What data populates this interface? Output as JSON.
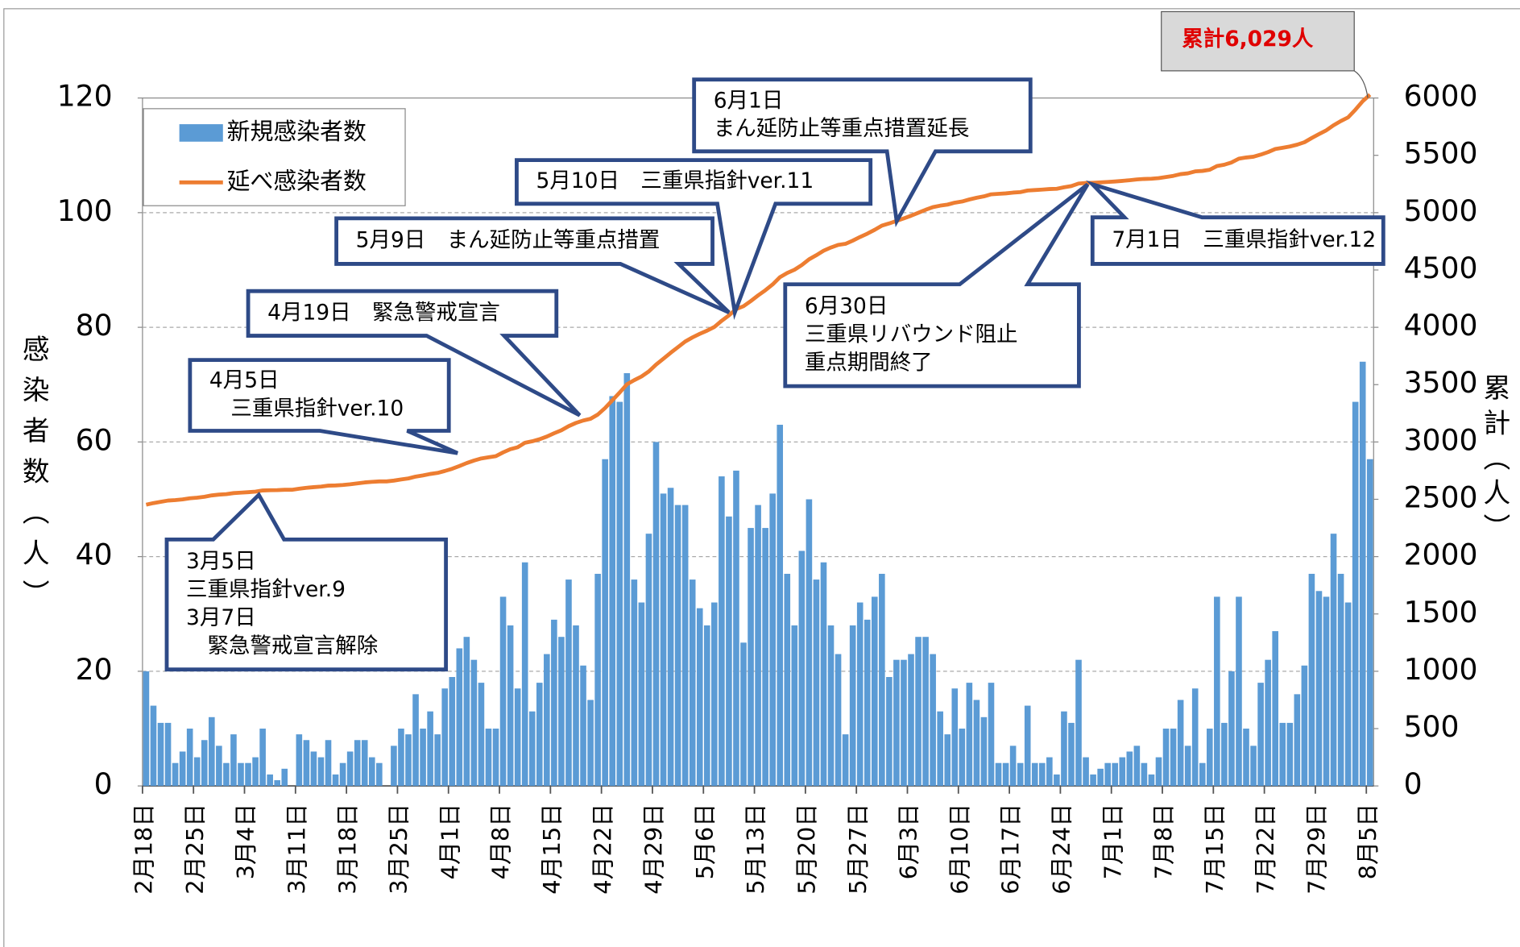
{
  "chart_data": {
    "type": "bar",
    "categories": [
      "2月18日",
      null,
      null,
      null,
      null,
      null,
      null,
      "2月25日",
      null,
      null,
      null,
      null,
      null,
      null,
      "3月4日",
      null,
      null,
      null,
      null,
      null,
      null,
      "3月11日",
      null,
      null,
      null,
      null,
      null,
      null,
      "3月18日",
      null,
      null,
      null,
      null,
      null,
      null,
      "3月25日",
      null,
      null,
      null,
      null,
      null,
      null,
      "4月1日",
      null,
      null,
      null,
      null,
      null,
      null,
      "4月8日",
      null,
      null,
      null,
      null,
      null,
      null,
      "4月15日",
      null,
      null,
      null,
      null,
      null,
      null,
      "4月22日",
      null,
      null,
      null,
      null,
      null,
      null,
      "4月29日",
      null,
      null,
      null,
      null,
      null,
      null,
      "5月6日",
      null,
      null,
      null,
      null,
      null,
      null,
      "5月13日",
      null,
      null,
      null,
      null,
      null,
      null,
      "5月20日",
      null,
      null,
      null,
      null,
      null,
      null,
      "5月27日",
      null,
      null,
      null,
      null,
      null,
      null,
      "6月3日",
      null,
      null,
      null,
      null,
      null,
      null,
      "6月10日",
      null,
      null,
      null,
      null,
      null,
      null,
      "6月17日",
      null,
      null,
      null,
      null,
      null,
      null,
      "6月24日",
      null,
      null,
      null,
      null,
      null,
      null,
      "7月1日",
      null,
      null,
      null,
      null,
      null,
      null,
      "7月8日",
      null,
      null,
      null,
      null,
      null,
      null,
      "7月15日",
      null,
      null,
      null,
      null,
      null,
      null,
      "7月22日",
      null,
      null,
      null,
      null,
      null,
      null,
      "7月29日",
      null,
      null,
      null,
      null,
      null,
      null,
      "8月5日"
    ],
    "series": [
      {
        "name": "新規感染者数",
        "color": "#5b9bd5",
        "values": [
          20,
          14,
          11,
          11,
          4,
          6,
          10,
          5,
          8,
          12,
          7,
          4,
          9,
          4,
          4,
          5,
          10,
          2,
          1,
          3,
          0,
          9,
          8,
          6,
          5,
          8,
          2,
          4,
          6,
          8,
          8,
          5,
          4,
          0,
          7,
          10,
          9,
          16,
          10,
          13,
          9,
          17,
          19,
          24,
          26,
          22,
          18,
          10,
          10,
          33,
          28,
          17,
          39,
          13,
          18,
          23,
          29,
          26,
          36,
          28,
          21,
          15,
          37,
          57,
          68,
          67,
          72,
          36,
          32,
          44,
          60,
          51,
          52,
          49,
          49,
          36,
          31,
          28,
          32,
          54,
          47,
          55,
          25,
          45,
          49,
          45,
          51,
          63,
          37,
          28,
          41,
          50,
          36,
          39,
          28,
          23,
          9,
          28,
          32,
          29,
          33,
          37,
          19,
          22,
          22,
          23,
          26,
          26,
          23,
          13,
          9,
          17,
          10,
          18,
          15,
          12,
          18,
          4,
          4,
          7,
          4,
          14,
          4,
          4,
          5,
          2,
          13,
          11,
          22,
          5,
          2,
          3,
          4,
          4,
          5,
          6,
          7,
          4,
          2,
          5,
          10,
          10,
          15,
          7,
          17,
          4,
          10,
          33,
          11,
          20,
          33,
          10,
          7,
          18,
          22,
          27,
          11,
          11,
          16,
          21,
          37,
          34,
          33,
          44,
          37,
          32,
          67,
          74,
          57
        ]
      },
      {
        "name": "延べ感染者数",
        "type": "line",
        "axis": "y2",
        "color": "#ed7d31",
        "values": [
          2453,
          2467,
          2478,
          2489,
          2493,
          2499,
          2509,
          2514,
          2522,
          2534,
          2541,
          2545,
          2554,
          2558,
          2562,
          2567,
          2577,
          2579,
          2580,
          2583,
          2583,
          2592,
          2600,
          2606,
          2611,
          2619,
          2621,
          2625,
          2631,
          2639,
          2647,
          2652,
          2656,
          2656,
          2663,
          2673,
          2682,
          2698,
          2708,
          2721,
          2730,
          2747,
          2766,
          2790,
          2816,
          2838,
          2856,
          2866,
          2876,
          2909,
          2937,
          2954,
          2993,
          3006,
          3024,
          3047,
          3076,
          3102,
          3138,
          3166,
          3187,
          3202,
          3239,
          3296,
          3364,
          3431,
          3503,
          3539,
          3571,
          3615,
          3675,
          3726,
          3778,
          3827,
          3876,
          3912,
          3943,
          3971,
          4003,
          4057,
          4104,
          4159,
          4184,
          4229,
          4278,
          4323,
          4374,
          4437,
          4474,
          4502,
          4543,
          4593,
          4629,
          4668,
          4696,
          4719,
          4728,
          4756,
          4788,
          4817,
          4850,
          4887,
          4906,
          4928,
          4950,
          4973,
          4999,
          5025,
          5048,
          5061,
          5070,
          5087,
          5097,
          5115,
          5130,
          5142,
          5160,
          5164,
          5168,
          5175,
          5179,
          5193,
          5197,
          5201,
          5206,
          5208,
          5221,
          5232,
          5254,
          5259,
          5261,
          5264,
          5268,
          5272,
          5277,
          5283,
          5290,
          5294,
          5296,
          5301,
          5311,
          5321,
          5336,
          5343,
          5360,
          5364,
          5374,
          5407,
          5418,
          5438,
          5471,
          5481,
          5488,
          5506,
          5528,
          5555,
          5566,
          5577,
          5593,
          5614,
          5651,
          5685,
          5718,
          5762,
          5799,
          5831,
          5898,
          5972,
          6029
        ]
      }
    ],
    "ylabel": "感染者数（人）",
    "y2label": "累計（人）",
    "ylim": [
      0,
      120
    ],
    "yticks": [
      0,
      20,
      40,
      60,
      80,
      100,
      120
    ],
    "y2lim": [
      0,
      6000
    ],
    "y2ticks": [
      0,
      500,
      1000,
      1500,
      2000,
      2500,
      3000,
      3500,
      4000,
      4500,
      5000,
      5500,
      6000
    ],
    "grid": true,
    "legend": "upper left",
    "annotations": [
      {
        "text": [
          "3月5日",
          "三重県指針ver.9",
          "3月7日",
          "　緊急警戒宣言解除"
        ]
      },
      {
        "text": [
          "4月5日",
          "　三重県指針ver.10"
        ]
      },
      {
        "text": [
          "4月19日　緊急警戒宣言"
        ]
      },
      {
        "text": [
          "5月9日　まん延防止等重点措置"
        ]
      },
      {
        "text": [
          "5月10日　三重県指針ver.11"
        ]
      },
      {
        "text": [
          "6月1日",
          "まん延防止等重点措置延長"
        ]
      },
      {
        "text": [
          "6月30日",
          "三重県リバウンド阻止",
          "重点期間終了"
        ]
      },
      {
        "text": [
          "7月1日　三重県指針ver.12"
        ]
      },
      {
        "text": [
          "累計6,029人"
        ]
      }
    ]
  }
}
